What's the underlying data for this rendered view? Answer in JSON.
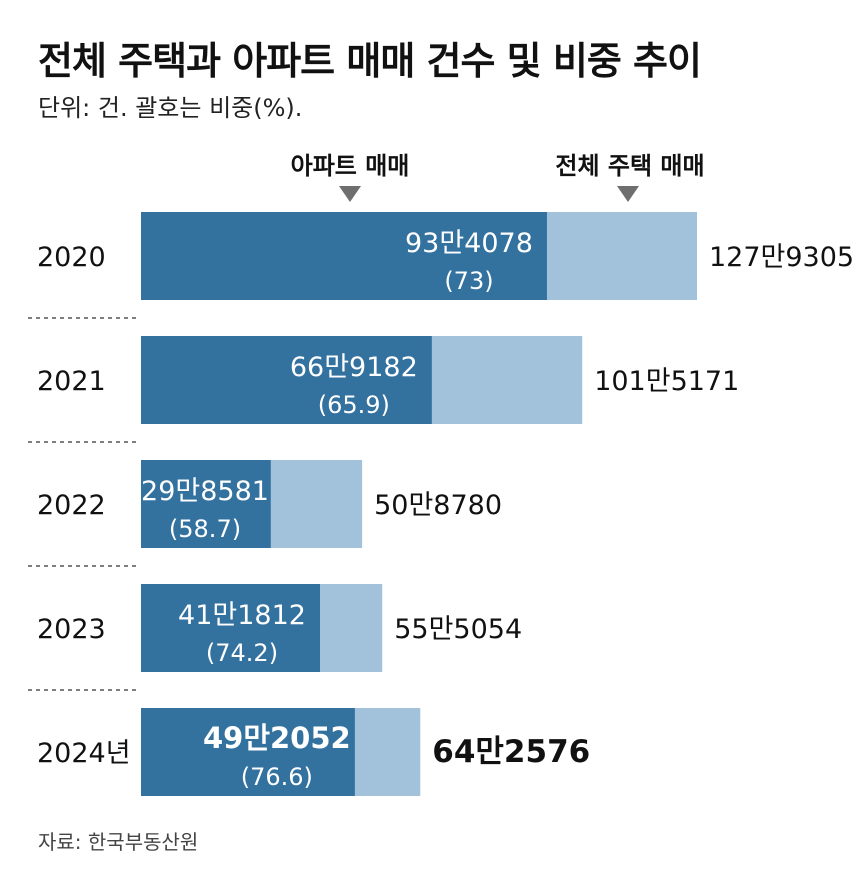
{
  "title": "전체 주택과 아파트 매매 건수 및 비중 추이",
  "subtitle": "단위: 건. 괄호는 비중(%).",
  "legend": {
    "apartment_label": "아파트 매매",
    "total_label": "전체 주택 매매"
  },
  "source": "자료: 한국부동산원",
  "colors": {
    "apartment": "#33719f",
    "total": "#a2c1da",
    "divider": "#555555"
  },
  "chart_data": {
    "type": "bar",
    "orientation": "horizontal",
    "stacked": "overlay",
    "categories": [
      "2020",
      "2021",
      "2022",
      "2023",
      "2024년"
    ],
    "series": [
      {
        "name": "아파트 매매",
        "values": [
          934078,
          669182,
          298581,
          411812,
          492052
        ],
        "labels": [
          "93만4078",
          "66만9182",
          "29만8581",
          "41만1812",
          "49만2052"
        ],
        "shares": [
          73,
          65.9,
          58.7,
          74.2,
          76.6
        ],
        "share_labels": [
          "(73)",
          "(65.9)",
          "(58.7)",
          "(74.2)",
          "(76.6)"
        ]
      },
      {
        "name": "전체 주택 매매",
        "values": [
          1279305,
          1015171,
          508780,
          555054,
          642576
        ],
        "labels": [
          "127만9305",
          "101만5171",
          "50만8780",
          "55만5054",
          "64만2576"
        ]
      }
    ],
    "highlight_category": "2024년"
  }
}
